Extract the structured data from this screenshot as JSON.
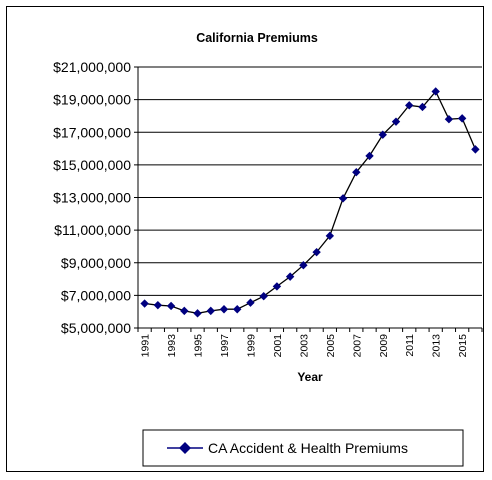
{
  "chart_data": {
    "type": "line",
    "title": "California Premiums",
    "xlabel": "Year",
    "ylabel": "",
    "ylim": [
      5000000,
      21000000
    ],
    "y_ticks": [
      "$5,000,000",
      "$7,000,000",
      "$9,000,000",
      "$11,000,000",
      "$13,000,000",
      "$15,000,000",
      "$17,000,000",
      "$19,000,000",
      "$21,000,000"
    ],
    "y_tick_values": [
      5000000,
      7000000,
      9000000,
      11000000,
      13000000,
      15000000,
      17000000,
      19000000,
      21000000
    ],
    "x_ticks": [
      "1991",
      "1993",
      "1995",
      "1997",
      "1999",
      "2001",
      "2003",
      "2005",
      "2007",
      "2009",
      "2011",
      "2013",
      "2015"
    ],
    "grid": "horizontal",
    "legend_position": "bottom",
    "series": [
      {
        "name": "CA Accident & Health Premiums",
        "color": "#000080",
        "marker": "diamond",
        "x": [
          1991,
          1992,
          1993,
          1994,
          1995,
          1996,
          1997,
          1998,
          1999,
          2000,
          2001,
          2002,
          2003,
          2004,
          2005,
          2006,
          2007,
          2008,
          2009,
          2010,
          2011,
          2012,
          2013,
          2014,
          2015,
          2016
        ],
        "values": [
          6500000,
          6400000,
          6350000,
          6050000,
          5900000,
          6050000,
          6150000,
          6150000,
          6550000,
          6950000,
          7550000,
          8150000,
          8850000,
          9650000,
          10650000,
          12950000,
          14550000,
          15550000,
          16850000,
          17650000,
          18650000,
          18550000,
          19500000,
          17800000,
          17850000,
          15950000
        ]
      }
    ]
  }
}
